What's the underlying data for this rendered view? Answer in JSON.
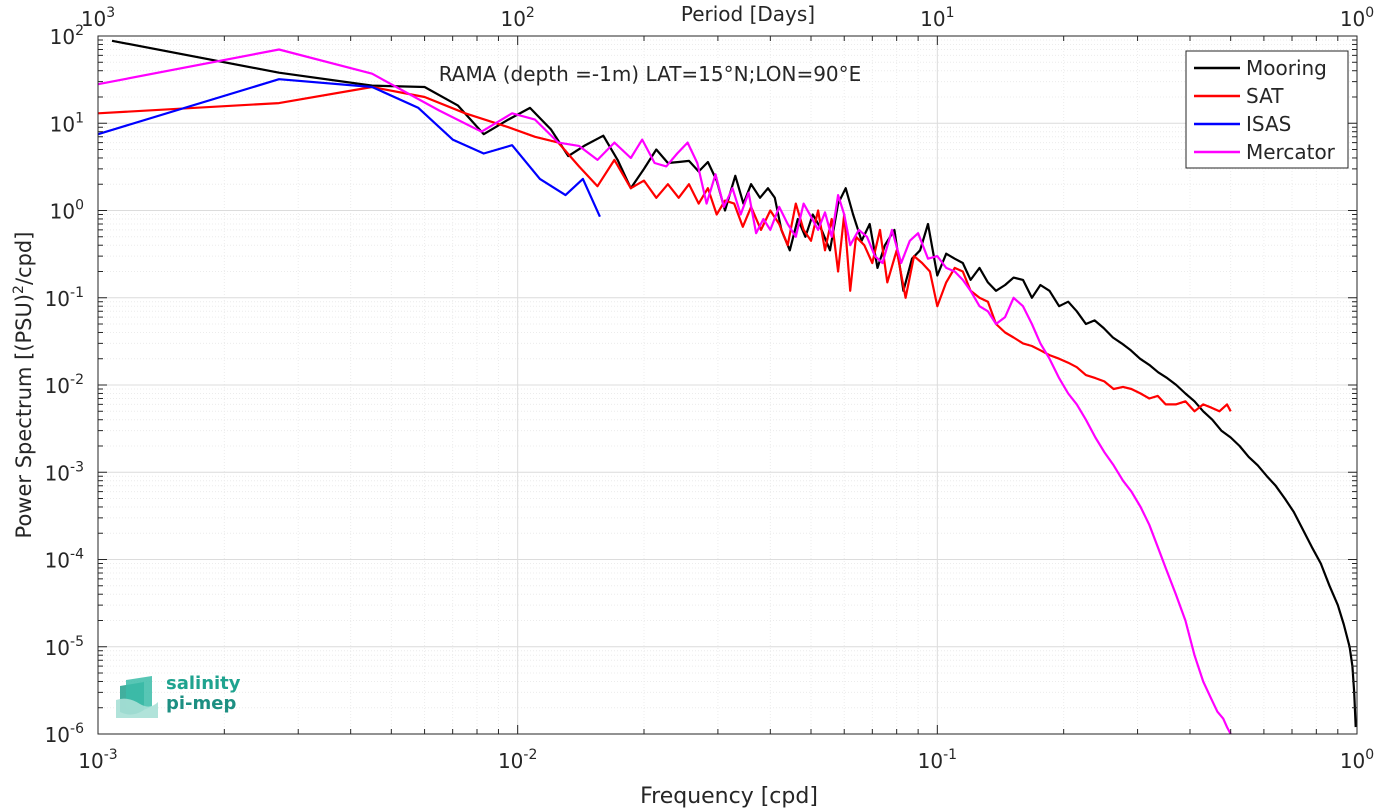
{
  "colors": {
    "mooring": "#000000",
    "sat": "#ff0000",
    "isas": "#0000ff",
    "mercator": "#ff00ff",
    "logo_teal": "#1fa38f"
  },
  "logo": {
    "line1": "salinity",
    "line2": "pi-mep"
  },
  "chart_data": {
    "type": "line",
    "title": "RAMA (depth =-1m) LAT=15°N;LON=90°E",
    "xlabel": "Frequency [cpd]",
    "ylabel_main": "Power Spectrum [(PSU)",
    "ylabel_sup": "2",
    "ylabel_tail": "/cpd]",
    "top_axis_label": "Period [Days]",
    "x_scale": "log",
    "y_scale": "log",
    "xlim": [
      0.001,
      1
    ],
    "ylim": [
      1e-06,
      100
    ],
    "x_ticks": [
      {
        "base": "10",
        "exp": "-3"
      },
      {
        "base": "10",
        "exp": "-2"
      },
      {
        "base": "10",
        "exp": "-1"
      },
      {
        "base": "10",
        "exp": "0"
      }
    ],
    "top_ticks": [
      {
        "base": "10",
        "exp": "3"
      },
      {
        "base": "10",
        "exp": "2"
      },
      {
        "base": "10",
        "exp": "1"
      },
      {
        "base": "10",
        "exp": "0"
      }
    ],
    "y_ticks": [
      {
        "base": "10",
        "exp": "-6"
      },
      {
        "base": "10",
        "exp": "-5"
      },
      {
        "base": "10",
        "exp": "-4"
      },
      {
        "base": "10",
        "exp": "-3"
      },
      {
        "base": "10",
        "exp": "-2"
      },
      {
        "base": "10",
        "exp": "-1"
      },
      {
        "base": "10",
        "exp": "0"
      },
      {
        "base": "10",
        "exp": "1"
      },
      {
        "base": "10",
        "exp": "2"
      }
    ],
    "grid": true,
    "legend_position": "top-right",
    "series": [
      {
        "name": "Mooring",
        "color": "#000000",
        "x": [
          0.00108,
          0.0027,
          0.0045,
          0.006,
          0.0072,
          0.0083,
          0.0095,
          0.0107,
          0.012,
          0.0132,
          0.0144,
          0.016,
          0.0173,
          0.0186,
          0.02,
          0.0214,
          0.0228,
          0.0242,
          0.0256,
          0.027,
          0.0284,
          0.0298,
          0.0312,
          0.033,
          0.0345,
          0.036,
          0.0378,
          0.0395,
          0.041,
          0.0425,
          0.0445,
          0.0465,
          0.0485,
          0.0505,
          0.053,
          0.0555,
          0.058,
          0.0605,
          0.063,
          0.066,
          0.069,
          0.072,
          0.075,
          0.079,
          0.083,
          0.087,
          0.091,
          0.095,
          0.1,
          0.105,
          0.11,
          0.115,
          0.12,
          0.126,
          0.132,
          0.138,
          0.145,
          0.152,
          0.16,
          0.168,
          0.176,
          0.185,
          0.195,
          0.205,
          0.215,
          0.226,
          0.237,
          0.249,
          0.262,
          0.275,
          0.289,
          0.304,
          0.32,
          0.336,
          0.353,
          0.371,
          0.39,
          0.41,
          0.43,
          0.452,
          0.475,
          0.5,
          0.525,
          0.552,
          0.58,
          0.61,
          0.64,
          0.673,
          0.707,
          0.743,
          0.78,
          0.82,
          0.86,
          0.9,
          0.93,
          0.96,
          0.975,
          0.985,
          0.993
        ],
        "y": [
          88,
          38,
          27,
          26,
          16,
          7.5,
          11,
          15,
          8.5,
          4.2,
          5.5,
          7.2,
          3.8,
          1.8,
          3,
          5,
          3.5,
          3.6,
          3.7,
          2.8,
          3.6,
          2.2,
          1,
          2.5,
          1.2,
          2,
          1.4,
          1.8,
          1.4,
          0.6,
          0.35,
          0.8,
          0.5,
          0.9,
          0.6,
          0.35,
          1.2,
          1.8,
          0.9,
          0.45,
          0.7,
          0.22,
          0.4,
          0.6,
          0.12,
          0.28,
          0.35,
          0.7,
          0.18,
          0.32,
          0.28,
          0.25,
          0.16,
          0.22,
          0.15,
          0.12,
          0.14,
          0.17,
          0.16,
          0.1,
          0.14,
          0.12,
          0.08,
          0.09,
          0.07,
          0.05,
          0.055,
          0.045,
          0.035,
          0.03,
          0.025,
          0.02,
          0.017,
          0.014,
          0.012,
          0.01,
          0.008,
          0.0065,
          0.005,
          0.004,
          0.003,
          0.0025,
          0.002,
          0.0015,
          0.0012,
          0.0009,
          0.0007,
          0.0005,
          0.00035,
          0.00022,
          0.00014,
          9e-05,
          5e-05,
          3e-05,
          1.8e-05,
          1e-05,
          6e-06,
          3e-06,
          1.2e-06
        ]
      },
      {
        "name": "SAT",
        "color": "#ff0000",
        "x": [
          0.001,
          0.0027,
          0.0045,
          0.006,
          0.0075,
          0.0095,
          0.011,
          0.0125,
          0.014,
          0.0155,
          0.017,
          0.0186,
          0.02,
          0.0214,
          0.0228,
          0.0242,
          0.0256,
          0.027,
          0.0284,
          0.0298,
          0.0312,
          0.0328,
          0.0344,
          0.036,
          0.038,
          0.04,
          0.042,
          0.044,
          0.046,
          0.048,
          0.05,
          0.052,
          0.054,
          0.056,
          0.058,
          0.06,
          0.062,
          0.064,
          0.067,
          0.07,
          0.073,
          0.076,
          0.08,
          0.084,
          0.088,
          0.092,
          0.096,
          0.1,
          0.105,
          0.11,
          0.115,
          0.12,
          0.126,
          0.132,
          0.138,
          0.145,
          0.152,
          0.16,
          0.168,
          0.176,
          0.185,
          0.195,
          0.205,
          0.215,
          0.226,
          0.238,
          0.25,
          0.263,
          0.277,
          0.29,
          0.305,
          0.32,
          0.335,
          0.35,
          0.37,
          0.39,
          0.41,
          0.43,
          0.45,
          0.47,
          0.49,
          0.5
        ],
        "y": [
          13,
          17,
          26,
          20,
          13,
          9,
          7,
          6,
          3.2,
          1.9,
          3.8,
          1.8,
          2.2,
          1.4,
          2,
          1.4,
          2,
          1.2,
          1.8,
          0.9,
          1.3,
          1.2,
          0.65,
          1.1,
          0.6,
          1,
          0.7,
          0.4,
          1.2,
          0.6,
          0.45,
          1,
          0.35,
          0.8,
          0.2,
          0.9,
          0.12,
          0.5,
          0.4,
          0.25,
          0.6,
          0.15,
          0.35,
          0.1,
          0.3,
          0.25,
          0.2,
          0.08,
          0.15,
          0.22,
          0.2,
          0.12,
          0.1,
          0.09,
          0.05,
          0.04,
          0.035,
          0.03,
          0.028,
          0.025,
          0.022,
          0.02,
          0.018,
          0.016,
          0.013,
          0.012,
          0.011,
          0.009,
          0.0095,
          0.009,
          0.008,
          0.007,
          0.0075,
          0.006,
          0.006,
          0.0065,
          0.005,
          0.006,
          0.0055,
          0.005,
          0.006,
          0.005
        ]
      },
      {
        "name": "ISAS",
        "color": "#0000ff",
        "x": [
          0.001,
          0.0027,
          0.0045,
          0.0058,
          0.007,
          0.0083,
          0.0097,
          0.0113,
          0.013,
          0.0143,
          0.0157
        ],
        "y": [
          7.5,
          32,
          26,
          15,
          6.5,
          4.5,
          5.6,
          2.3,
          1.5,
          2.3,
          0.85
        ]
      },
      {
        "name": "Mercator",
        "color": "#ff00ff",
        "x": [
          0.001,
          0.0027,
          0.0045,
          0.0065,
          0.0082,
          0.0097,
          0.011,
          0.0125,
          0.014,
          0.0155,
          0.017,
          0.0186,
          0.0198,
          0.0212,
          0.0226,
          0.024,
          0.0254,
          0.0268,
          0.0282,
          0.0296,
          0.031,
          0.0325,
          0.034,
          0.0355,
          0.037,
          0.0385,
          0.04,
          0.042,
          0.044,
          0.046,
          0.048,
          0.05,
          0.052,
          0.054,
          0.056,
          0.058,
          0.06,
          0.062,
          0.065,
          0.068,
          0.071,
          0.074,
          0.078,
          0.082,
          0.086,
          0.09,
          0.095,
          0.1,
          0.105,
          0.11,
          0.115,
          0.12,
          0.126,
          0.132,
          0.138,
          0.145,
          0.152,
          0.16,
          0.168,
          0.176,
          0.185,
          0.195,
          0.205,
          0.215,
          0.226,
          0.238,
          0.25,
          0.263,
          0.277,
          0.29,
          0.305,
          0.32,
          0.335,
          0.35,
          0.37,
          0.39,
          0.41,
          0.43,
          0.45,
          0.465,
          0.48,
          0.49,
          0.5
        ],
        "y": [
          28,
          70,
          37,
          14,
          8,
          13,
          11,
          6,
          5.5,
          3.8,
          6,
          4,
          6.5,
          3.5,
          3.2,
          4.5,
          6,
          3.5,
          1.2,
          2.6,
          1.1,
          1.8,
          0.9,
          1.6,
          0.55,
          0.8,
          0.6,
          1.1,
          0.7,
          0.5,
          1.2,
          0.85,
          0.6,
          0.95,
          0.5,
          1.5,
          0.9,
          0.4,
          0.6,
          0.5,
          0.3,
          0.25,
          0.6,
          0.25,
          0.45,
          0.55,
          0.28,
          0.3,
          0.22,
          0.2,
          0.16,
          0.12,
          0.08,
          0.07,
          0.05,
          0.06,
          0.1,
          0.08,
          0.05,
          0.03,
          0.02,
          0.012,
          0.008,
          0.006,
          0.004,
          0.0025,
          0.0017,
          0.0012,
          0.0008,
          0.0006,
          0.0004,
          0.00025,
          0.00014,
          8e-05,
          4e-05,
          2e-05,
          8e-06,
          4e-06,
          2.5e-06,
          1.8e-06,
          1.5e-06,
          1.2e-06,
          1e-06
        ]
      }
    ]
  }
}
